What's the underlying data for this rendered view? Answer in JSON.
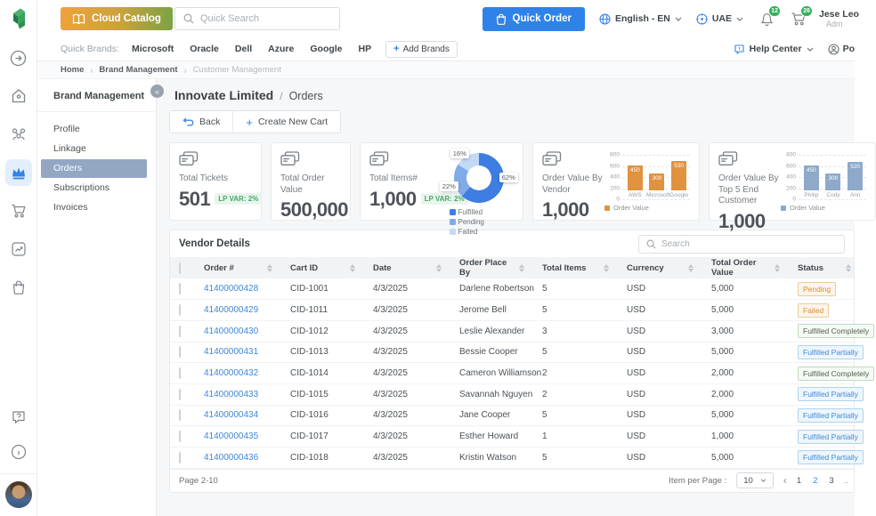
{
  "app": {
    "name": "Cloud Catalog"
  },
  "header": {
    "search_placeholder": "Quick Search",
    "quick_order_label": "Quick Order",
    "language": "English - EN",
    "region": "UAE",
    "notification_count": "12",
    "cart_count": "26",
    "user_name": "Jese Leo",
    "user_role": "Adm"
  },
  "quick_brands": {
    "label": "Quick Brands:",
    "items": [
      "Microsoft",
      "Oracle",
      "Dell",
      "Azure",
      "Google",
      "HP"
    ],
    "add_button": "Add Brands",
    "help_center": "Help Center",
    "portal": "Po"
  },
  "breadcrumb": [
    "Home",
    "Brand Management",
    "Customer Management"
  ],
  "sidebar": {
    "title": "Brand Management",
    "items": [
      {
        "label": "Profile",
        "active": false
      },
      {
        "label": "Linkage",
        "active": false
      },
      {
        "label": "Orders",
        "active": true
      },
      {
        "label": "Subscriptions",
        "active": false
      },
      {
        "label": "Invoices",
        "active": false
      }
    ]
  },
  "page": {
    "title_main": "Innovate Limited",
    "title_sep": "/",
    "title_sub": "Orders",
    "back_label": "Back",
    "create_cart_label": "Create New Cart"
  },
  "stats": [
    {
      "label": "Total Tickets",
      "value": "501",
      "badge": "LP VAR: 2%",
      "chart": null,
      "width": 104
    },
    {
      "label": "Total Order Value",
      "value": "500,000",
      "badge": null,
      "chart": null,
      "width": 90
    },
    {
      "label": "Total Items#",
      "value": "1,000",
      "badge": "LP VAR: 2%",
      "chart": "items_status_donut",
      "width": 184
    },
    {
      "label": "Order Value By Vendor",
      "value": "1,000",
      "badge": null,
      "chart": "vendor_bars",
      "width": 188
    },
    {
      "label": "Order Value By Top 5 End Customer",
      "value": "1,000",
      "badge": null,
      "chart": "customer_bars",
      "width": 188
    }
  ],
  "chart_data": [
    {
      "id": "items_status_donut",
      "type": "pie",
      "labels": [
        "Fulfilled",
        "Pending",
        "Failed"
      ],
      "values": [
        62,
        22,
        16
      ],
      "value_labels": [
        "62%",
        "22%",
        "16%"
      ],
      "colors": [
        "#3e7de1",
        "#7fabe9",
        "#c3d9f6"
      ],
      "legend_position": "bottom"
    },
    {
      "id": "vendor_bars",
      "type": "bar",
      "categories": [
        "AWS",
        "Microsoft",
        "Google"
      ],
      "values": [
        450,
        300,
        530
      ],
      "bar_color": "#e0923f",
      "ylim": [
        0,
        800
      ],
      "yticks": [
        800,
        600,
        400,
        200,
        0
      ],
      "legend": "Order Value",
      "grid": true
    },
    {
      "id": "customer_bars",
      "type": "bar",
      "categories": [
        "Philip",
        "Cody",
        "Ann"
      ],
      "values": [
        450,
        300,
        520
      ],
      "bar_color": "#8ea9c9",
      "ylim": [
        0,
        800
      ],
      "yticks": [
        800,
        600,
        400,
        200,
        0
      ],
      "legend": "Order Value",
      "grid": true
    }
  ],
  "table": {
    "title": "Vendor Details",
    "search_placeholder": "Search",
    "columns": [
      "Order #",
      "Cart ID",
      "Date",
      "Order Place By",
      "Total Items",
      "Currency",
      "Total Order Value",
      "Status"
    ],
    "rows": [
      {
        "order": "41400000428",
        "cart": "CID-1001",
        "date": "4/3/2025",
        "placed_by": "Darlene Robertson",
        "items": "5",
        "currency": "USD",
        "value": "5,000",
        "status": "Pending",
        "status_type": "orange"
      },
      {
        "order": "41400000429",
        "cart": "CID-1011",
        "date": "4/3/2025",
        "placed_by": "Jerome Bell",
        "items": "5",
        "currency": "USD",
        "value": "5,000",
        "status": "Failed",
        "status_type": "orange"
      },
      {
        "order": "41400000430",
        "cart": "CID-1012",
        "date": "4/3/2025",
        "placed_by": "Leslie Alexander",
        "items": "3",
        "currency": "USD",
        "value": "3,000",
        "status": "Fulfilled Completely",
        "status_type": "green"
      },
      {
        "order": "41400000431",
        "cart": "CID-1013",
        "date": "4/3/2025",
        "placed_by": "Bessie Cooper",
        "items": "5",
        "currency": "USD",
        "value": "5,000",
        "status": "Fulfilled Partially",
        "status_type": "blue"
      },
      {
        "order": "41400000432",
        "cart": "CID-1014",
        "date": "4/3/2025",
        "placed_by": "Cameron Williamson",
        "items": "2",
        "currency": "USD",
        "value": "2,000",
        "status": "Fulfilled Completely",
        "status_type": "green"
      },
      {
        "order": "41400000433",
        "cart": "CID-1015",
        "date": "4/3/2025",
        "placed_by": "Savannah Nguyen",
        "items": "2",
        "currency": "USD",
        "value": "2,000",
        "status": "Fulfilled Partially",
        "status_type": "blue"
      },
      {
        "order": "41400000434",
        "cart": "CID-1016",
        "date": "4/3/2025",
        "placed_by": "Jane Cooper",
        "items": "5",
        "currency": "USD",
        "value": "5,000",
        "status": "Fulfilled Partially",
        "status_type": "blue"
      },
      {
        "order": "41400000435",
        "cart": "CID-1017",
        "date": "4/3/2025",
        "placed_by": "Esther Howard",
        "items": "1",
        "currency": "USD",
        "value": "1,000",
        "status": "Fulfilled Partially",
        "status_type": "blue"
      },
      {
        "order": "41400000436",
        "cart": "CID-1018",
        "date": "4/3/2025",
        "placed_by": "Kristin Watson",
        "items": "5",
        "currency": "USD",
        "value": "5,000",
        "status": "Fulfilled Partially",
        "status_type": "blue"
      }
    ]
  },
  "pagination": {
    "range_label": "Page 2-10",
    "per_page_label": "Item per Page :",
    "per_page_value": "10",
    "pages": [
      "1",
      "2",
      "3"
    ],
    "active_page": "2",
    "ellipsis": ".."
  }
}
